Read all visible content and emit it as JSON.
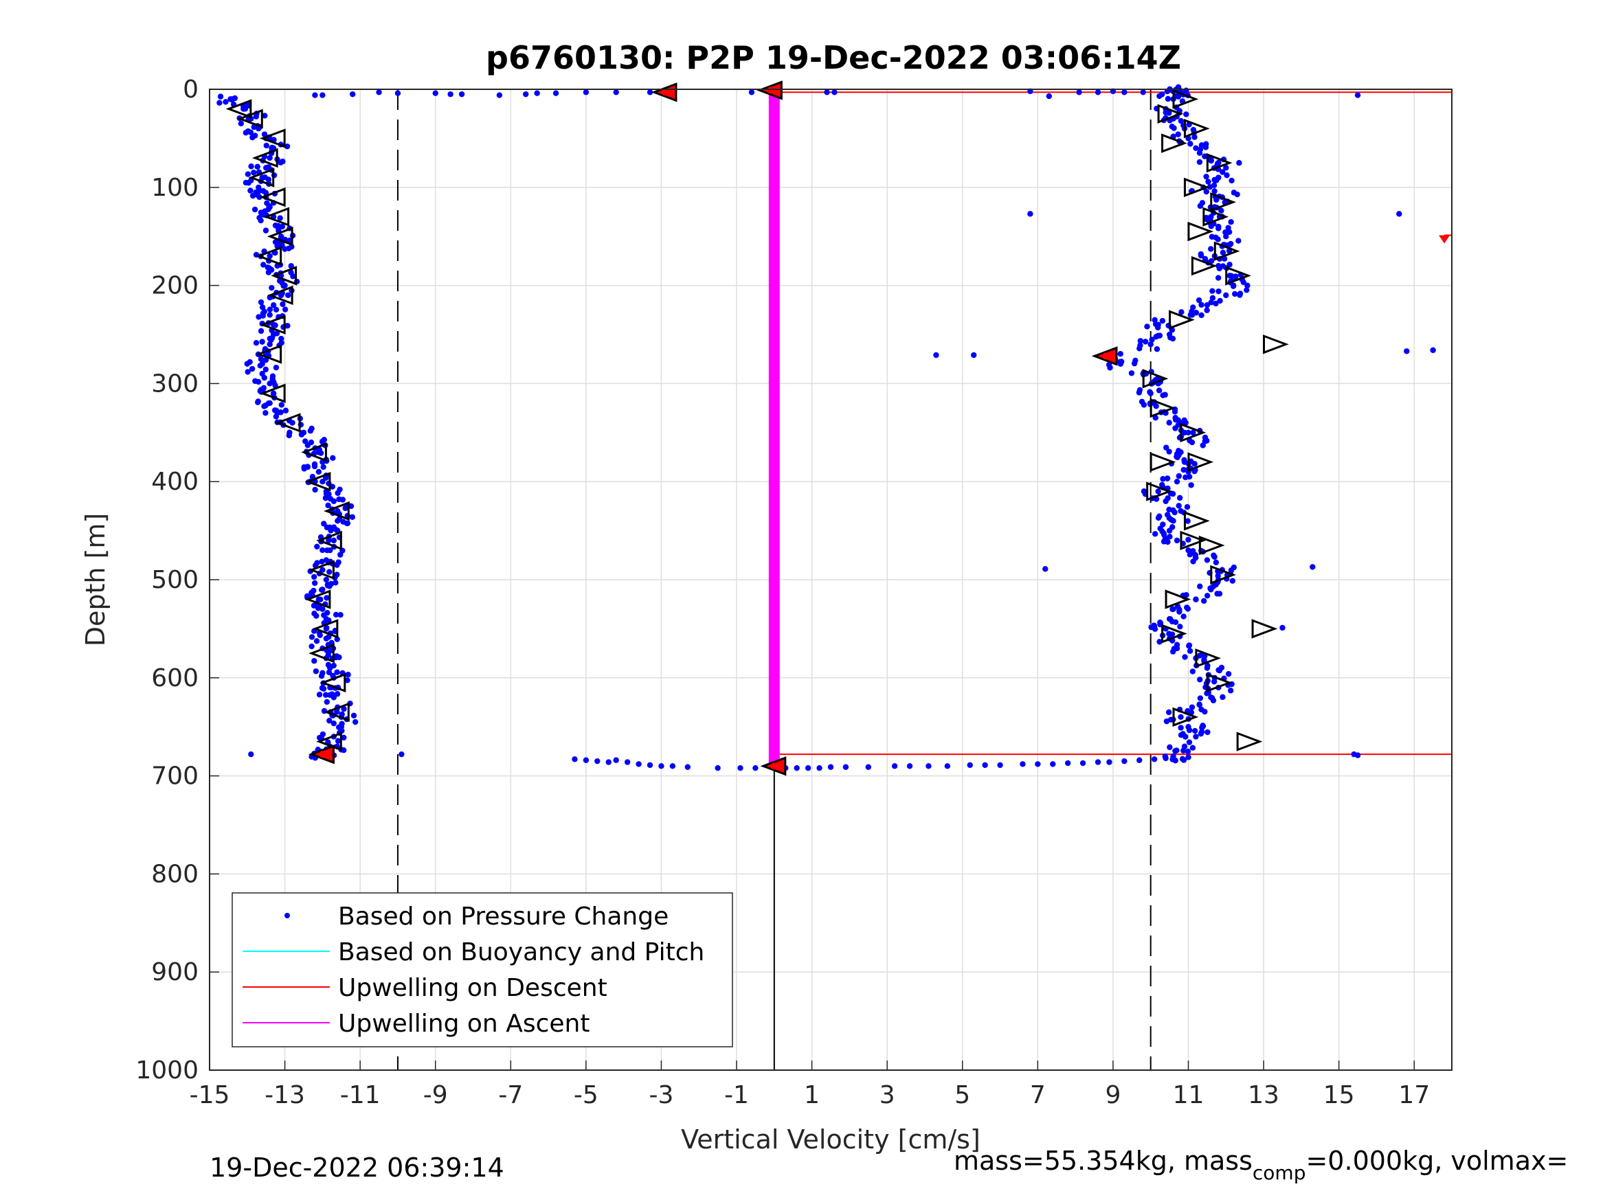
{
  "chart_data": {
    "type": "scatter",
    "title": "p6760130: P2P 19-Dec-2022 03:06:14Z",
    "xlabel": "Vertical Velocity [cm/s]",
    "ylabel": "Depth [m]",
    "xlim": [
      -15,
      18
    ],
    "ylim": [
      0,
      1000
    ],
    "y_reversed": true,
    "grid": true,
    "x_ticks": [
      -15,
      -13,
      -11,
      -9,
      -7,
      -5,
      -3,
      -1,
      1,
      3,
      5,
      7,
      9,
      11,
      13,
      15,
      17
    ],
    "y_ticks": [
      0,
      100,
      200,
      300,
      400,
      500,
      600,
      700,
      800,
      900,
      1000
    ],
    "legend": {
      "placement": "bottom-left",
      "entries": [
        {
          "label": "Based on Pressure Change",
          "color": "#0000ff",
          "marker": "dot"
        },
        {
          "label": "Based on Buoyancy and Pitch",
          "color": "#00ffff",
          "marker": "line"
        },
        {
          "label": "Upwelling on Descent",
          "color": "#ff0000",
          "marker": "line"
        },
        {
          "label": "Upwelling on Ascent",
          "color": "#ff00ff",
          "marker": "line"
        }
      ]
    },
    "reference_lines": {
      "dashed_x": [
        -10,
        10
      ],
      "solid_x": 0,
      "solid_x_depth_range": [
        690,
        1000
      ]
    },
    "upwelling_on_descent": [
      [
        0,
        3
      ],
      [
        18,
        3
      ],
      [
        0,
        678
      ],
      [
        18,
        678
      ]
    ],
    "upwelling_on_ascent": [
      [
        0,
        0
      ],
      [
        0,
        690
      ]
    ],
    "descent_track": [
      [
        -14.4,
        10
      ],
      [
        -14.1,
        20
      ],
      [
        -13.9,
        30
      ],
      [
        -13.7,
        40
      ],
      [
        -13.5,
        50
      ],
      [
        -13.3,
        60
      ],
      [
        -13.4,
        70
      ],
      [
        -13.5,
        80
      ],
      [
        -13.6,
        90
      ],
      [
        -13.7,
        100
      ],
      [
        -13.5,
        110
      ],
      [
        -13.4,
        120
      ],
      [
        -13.3,
        130
      ],
      [
        -13.2,
        140
      ],
      [
        -13.1,
        150
      ],
      [
        -13.2,
        160
      ],
      [
        -13.4,
        170
      ],
      [
        -13.2,
        180
      ],
      [
        -13.1,
        190
      ],
      [
        -13.0,
        200
      ],
      [
        -13.1,
        210
      ],
      [
        -13.3,
        220
      ],
      [
        -13.4,
        230
      ],
      [
        -13.3,
        240
      ],
      [
        -13.3,
        250
      ],
      [
        -13.4,
        260
      ],
      [
        -13.5,
        270
      ],
      [
        -13.6,
        280
      ],
      [
        -13.6,
        290
      ],
      [
        -13.4,
        300
      ],
      [
        -13.3,
        310
      ],
      [
        -13.4,
        320
      ],
      [
        -13.2,
        330
      ],
      [
        -12.8,
        340
      ],
      [
        -12.5,
        350
      ],
      [
        -12.3,
        360
      ],
      [
        -12.1,
        370
      ],
      [
        -12.0,
        380
      ],
      [
        -12.1,
        390
      ],
      [
        -12.0,
        400
      ],
      [
        -11.9,
        410
      ],
      [
        -11.7,
        420
      ],
      [
        -11.6,
        430
      ],
      [
        -11.6,
        440
      ],
      [
        -11.6,
        450
      ],
      [
        -11.7,
        460
      ],
      [
        -11.8,
        470
      ],
      [
        -11.9,
        480
      ],
      [
        -12.0,
        490
      ],
      [
        -11.9,
        500
      ],
      [
        -12.0,
        510
      ],
      [
        -12.1,
        520
      ],
      [
        -12.0,
        530
      ],
      [
        -11.9,
        540
      ],
      [
        -11.9,
        550
      ],
      [
        -11.9,
        560
      ],
      [
        -12.0,
        570
      ],
      [
        -11.9,
        580
      ],
      [
        -11.8,
        590
      ],
      [
        -11.7,
        600
      ],
      [
        -11.8,
        610
      ],
      [
        -11.7,
        620
      ],
      [
        -11.6,
        630
      ],
      [
        -11.5,
        640
      ],
      [
        -11.5,
        650
      ],
      [
        -11.7,
        660
      ],
      [
        -11.8,
        670
      ],
      [
        -12.0,
        678
      ]
    ],
    "ascent_track": [
      [
        10.6,
        680
      ],
      [
        10.9,
        670
      ],
      [
        11.2,
        660
      ],
      [
        11.0,
        650
      ],
      [
        10.8,
        640
      ],
      [
        11.1,
        630
      ],
      [
        11.6,
        620
      ],
      [
        11.8,
        610
      ],
      [
        11.7,
        600
      ],
      [
        11.5,
        590
      ],
      [
        11.2,
        580
      ],
      [
        10.7,
        570
      ],
      [
        10.5,
        560
      ],
      [
        10.4,
        550
      ],
      [
        10.5,
        540
      ],
      [
        10.6,
        530
      ],
      [
        11.2,
        520
      ],
      [
        11.6,
        510
      ],
      [
        11.8,
        500
      ],
      [
        11.9,
        490
      ],
      [
        11.5,
        480
      ],
      [
        11.0,
        470
      ],
      [
        10.7,
        460
      ],
      [
        10.5,
        450
      ],
      [
        10.6,
        440
      ],
      [
        10.8,
        430
      ],
      [
        10.4,
        420
      ],
      [
        10.2,
        410
      ],
      [
        10.7,
        400
      ],
      [
        11.0,
        390
      ],
      [
        10.9,
        380
      ],
      [
        10.8,
        370
      ],
      [
        11.1,
        360
      ],
      [
        11.0,
        350
      ],
      [
        10.8,
        340
      ],
      [
        10.4,
        330
      ],
      [
        10.1,
        320
      ],
      [
        10.0,
        310
      ],
      [
        10.2,
        300
      ],
      [
        9.8,
        290
      ],
      [
        9.2,
        280
      ],
      [
        8.9,
        272
      ],
      [
        10.0,
        260
      ],
      [
        10.5,
        250
      ],
      [
        10.2,
        240
      ],
      [
        11.1,
        230
      ],
      [
        11.5,
        220
      ],
      [
        12.0,
        210
      ],
      [
        12.2,
        200
      ],
      [
        12.1,
        190
      ],
      [
        11.8,
        180
      ],
      [
        11.7,
        170
      ],
      [
        11.9,
        160
      ],
      [
        12.0,
        150
      ],
      [
        11.8,
        140
      ],
      [
        11.6,
        130
      ],
      [
        11.7,
        120
      ],
      [
        11.9,
        110
      ],
      [
        11.4,
        100
      ],
      [
        11.8,
        90
      ],
      [
        12.0,
        80
      ],
      [
        11.6,
        70
      ],
      [
        11.2,
        60
      ],
      [
        11.0,
        50
      ],
      [
        10.9,
        40
      ],
      [
        10.6,
        30
      ],
      [
        10.4,
        20
      ],
      [
        10.6,
        10
      ],
      [
        10.9,
        5
      ],
      [
        10.6,
        2
      ]
    ],
    "bottom_transition": [
      [
        -5.3,
        683
      ],
      [
        -5.0,
        684
      ],
      [
        -4.7,
        685
      ],
      [
        -4.4,
        686
      ],
      [
        -4.2,
        684
      ],
      [
        -3.9,
        686
      ],
      [
        -3.6,
        688
      ],
      [
        -3.3,
        689
      ],
      [
        -3.0,
        690
      ],
      [
        -2.7,
        690
      ],
      [
        -2.3,
        691
      ],
      [
        -1.5,
        692
      ],
      [
        -0.9,
        692
      ],
      [
        -0.5,
        692
      ],
      [
        0.3,
        692
      ],
      [
        0.6,
        692
      ],
      [
        0.9,
        692
      ],
      [
        1.2,
        692
      ],
      [
        1.5,
        691
      ],
      [
        1.9,
        691
      ],
      [
        2.5,
        691
      ],
      [
        3.2,
        690
      ],
      [
        3.6,
        690
      ],
      [
        4.1,
        690
      ],
      [
        4.6,
        690
      ],
      [
        5.2,
        689
      ],
      [
        5.6,
        689
      ],
      [
        6.0,
        689
      ],
      [
        6.6,
        688
      ],
      [
        7.0,
        688
      ],
      [
        7.4,
        688
      ],
      [
        7.8,
        687
      ],
      [
        8.2,
        687
      ],
      [
        8.6,
        686
      ],
      [
        8.9,
        686
      ],
      [
        9.3,
        685
      ],
      [
        9.7,
        684
      ],
      [
        10.1,
        683
      ],
      [
        10.4,
        682
      ],
      [
        11.0,
        681
      ]
    ],
    "surface_transition": [
      [
        -10.5,
        3
      ],
      [
        -10.0,
        4
      ],
      [
        -9.0,
        4
      ],
      [
        -8.6,
        5
      ],
      [
        -8.3,
        5
      ],
      [
        -7.3,
        6
      ],
      [
        -6.6,
        5
      ],
      [
        -6.3,
        4
      ],
      [
        -5.8,
        4
      ],
      [
        -5.0,
        3
      ],
      [
        -4.2,
        3
      ],
      [
        -3.3,
        3
      ],
      [
        -0.6,
        3
      ],
      [
        6.8,
        2
      ],
      [
        7.3,
        7
      ],
      [
        8.1,
        3
      ],
      [
        8.6,
        3
      ],
      [
        9.0,
        2
      ],
      [
        9.3,
        3
      ],
      [
        9.8,
        3
      ],
      [
        1.4,
        3
      ],
      [
        1.6,
        3
      ],
      [
        -12.2,
        6
      ],
      [
        -12.0,
        6
      ],
      [
        -11.2,
        5
      ]
    ],
    "outliers": [
      [
        6.8,
        127
      ],
      [
        16.6,
        127
      ],
      [
        4.3,
        271
      ],
      [
        5.3,
        271
      ],
      [
        16.8,
        267
      ],
      [
        17.5,
        266
      ],
      [
        7.2,
        489
      ],
      [
        14.3,
        487
      ],
      [
        15.5,
        6
      ],
      [
        15.4,
        678
      ],
      [
        15.5,
        679
      ],
      [
        -13.9,
        678
      ],
      [
        -9.9,
        678
      ],
      [
        13.5,
        549
      ]
    ],
    "descent_triangles": [
      [
        -14.2,
        20
      ],
      [
        -13.9,
        30
      ],
      [
        -13.3,
        50
      ],
      [
        -13.5,
        70
      ],
      [
        -13.6,
        90
      ],
      [
        -13.3,
        110
      ],
      [
        -13.2,
        130
      ],
      [
        -13.1,
        150
      ],
      [
        -13.4,
        170
      ],
      [
        -13.0,
        190
      ],
      [
        -13.1,
        210
      ],
      [
        -13.3,
        240
      ],
      [
        -13.4,
        270
      ],
      [
        -13.3,
        310
      ],
      [
        -12.9,
        340
      ],
      [
        -12.2,
        370
      ],
      [
        -12.1,
        400
      ],
      [
        -11.6,
        430
      ],
      [
        -11.8,
        460
      ],
      [
        -12.0,
        490
      ],
      [
        -12.1,
        520
      ],
      [
        -11.9,
        550
      ],
      [
        -12.0,
        575
      ],
      [
        -11.7,
        605
      ],
      [
        -11.6,
        635
      ],
      [
        -11.8,
        665
      ],
      [
        -12.0,
        678
      ]
    ],
    "ascent_triangles": [
      [
        10.9,
        10
      ],
      [
        10.5,
        25
      ],
      [
        11.2,
        40
      ],
      [
        10.6,
        55
      ],
      [
        11.8,
        75
      ],
      [
        11.2,
        100
      ],
      [
        11.9,
        115
      ],
      [
        11.7,
        130
      ],
      [
        11.3,
        145
      ],
      [
        12.0,
        165
      ],
      [
        11.4,
        180
      ],
      [
        12.3,
        190
      ],
      [
        10.8,
        235
      ],
      [
        13.3,
        260
      ],
      [
        10.1,
        295
      ],
      [
        10.3,
        325
      ],
      [
        11.1,
        350
      ],
      [
        11.3,
        380
      ],
      [
        10.3,
        380
      ],
      [
        10.2,
        410
      ],
      [
        11.2,
        440
      ],
      [
        11.6,
        465
      ],
      [
        11.1,
        460
      ],
      [
        11.9,
        495
      ],
      [
        10.7,
        520
      ],
      [
        10.6,
        555
      ],
      [
        13.0,
        550
      ],
      [
        11.5,
        580
      ],
      [
        11.8,
        605
      ],
      [
        10.9,
        640
      ],
      [
        12.6,
        665
      ]
    ],
    "highlight_points": [
      [
        -2.9,
        3
      ],
      [
        -0.1,
        1
      ],
      [
        8.8,
        272
      ],
      [
        -12.0,
        678
      ],
      [
        0.0,
        690
      ]
    ],
    "far_marker": [
      17.8,
      153
    ]
  },
  "footer": {
    "timestamp": "19-Dec-2022 06:39:14",
    "mass_text": "mass=55.354kg, mass",
    "mass_sub": "comp",
    "mass_rest": "=0.000kg, volmax="
  }
}
